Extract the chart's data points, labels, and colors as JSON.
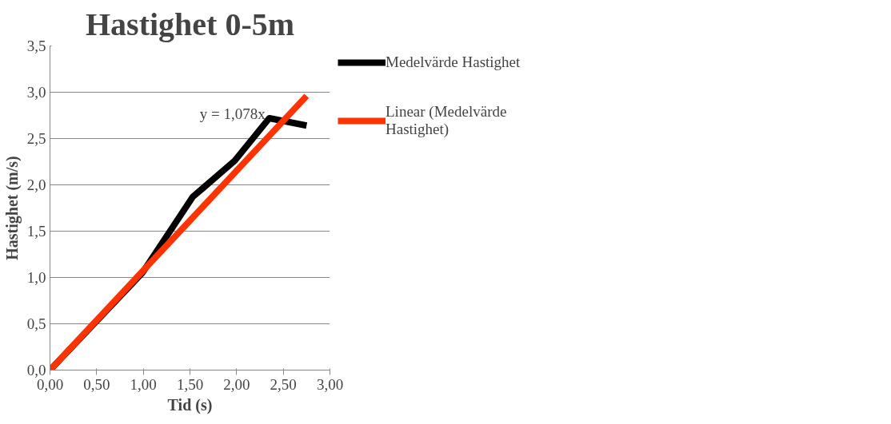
{
  "chart_data": {
    "type": "line",
    "title": "Hastighet 0-5m",
    "xlabel": "Tid (s)",
    "ylabel": "Hastighet (m/s)",
    "x": [
      0,
      0.99,
      1.53,
      1.98,
      2.35,
      2.75
    ],
    "series": [
      {
        "name": "Medelvärde Hastighet",
        "color": "#000000",
        "values": [
          0,
          1.05,
          1.87,
          2.26,
          2.72,
          2.64
        ]
      },
      {
        "name": "Linear (Medelvärde Hastighet)",
        "color": "#ff3300",
        "x": [
          0,
          2.75
        ],
        "values": [
          0,
          2.96
        ]
      }
    ],
    "annotations": [
      "y = 1,078x"
    ],
    "xlim": [
      0,
      3
    ],
    "xticks": [
      {
        "value": 0,
        "label": "0,00"
      },
      {
        "value": 0.5,
        "label": "0,50"
      },
      {
        "value": 1,
        "label": "1,00"
      },
      {
        "value": 1.5,
        "label": "1,50"
      },
      {
        "value": 2,
        "label": "2,00"
      },
      {
        "value": 2.5,
        "label": "2,50"
      },
      {
        "value": 3,
        "label": "3,00"
      }
    ],
    "ylim": [
      0,
      3.5
    ],
    "yticks": [
      {
        "value": 0,
        "label": "0,0"
      },
      {
        "value": 0.5,
        "label": "0,5"
      },
      {
        "value": 1,
        "label": "1,0"
      },
      {
        "value": 1.5,
        "label": "1,5"
      },
      {
        "value": 2,
        "label": "2,0"
      },
      {
        "value": 2.5,
        "label": "2,5"
      },
      {
        "value": 3,
        "label": "3,0"
      },
      {
        "value": 3.5,
        "label": "3,5"
      }
    ],
    "grid": "y",
    "legend": "right",
    "marker": "none",
    "line_style": "solid"
  }
}
